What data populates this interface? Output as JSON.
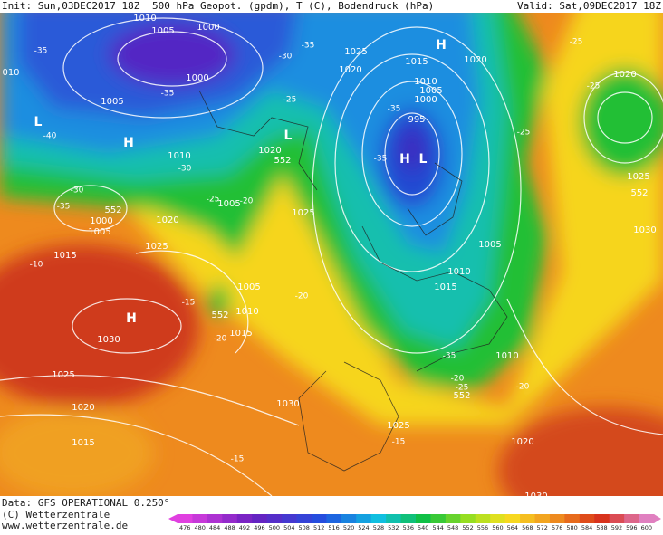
{
  "header": {
    "init": "Init: Sun,03DEC2017 18Z",
    "product": "500 hPa Geopot. (gpdm), T (C), Bodendruck (hPa)",
    "valid": "Valid: Sat,09DEC2017 18Z"
  },
  "footer": {
    "data": "Data: GFS OPERATIONAL 0.250°",
    "copyright": "(C) Wetterzentrale",
    "url": "www.wetterzentrale.de"
  },
  "colorbar": {
    "labels": [
      476,
      480,
      484,
      488,
      492,
      496,
      500,
      504,
      508,
      512,
      516,
      520,
      524,
      528,
      532,
      536,
      540,
      544,
      548,
      552,
      556,
      560,
      564,
      568,
      572,
      576,
      580,
      584,
      588,
      592,
      596,
      600
    ]
  },
  "map_labels": [
    "1010",
    "1005",
    "1000",
    "1000",
    "010",
    "-35",
    "1005",
    "-35",
    "L",
    "-40",
    "H",
    "1010",
    "-30",
    "1020",
    "552",
    "L",
    "-25",
    "-30",
    "-35",
    "1025",
    "1020",
    "1015",
    "H",
    "1020",
    "1010",
    "1005",
    "1000",
    "-35",
    "995",
    "-35",
    "H",
    "L",
    "-30",
    "-35",
    "552",
    "1000",
    "1005",
    "1020",
    "-25",
    "1005",
    "-20",
    "1025",
    "1025",
    "1015",
    "-10",
    "1005",
    "-20",
    "-15",
    "1010",
    "552",
    "H",
    "-20",
    "1015",
    "1030",
    "1005",
    "1010",
    "1015",
    "-35",
    "1010",
    "-20",
    "-25",
    "552",
    "-20",
    "1025",
    "1020",
    "1030",
    "1025",
    "-15",
    "1015",
    "1020",
    "-15",
    "-25",
    "1020",
    "-25",
    "-25",
    "1025",
    "552",
    "1030",
    "1030"
  ]
}
